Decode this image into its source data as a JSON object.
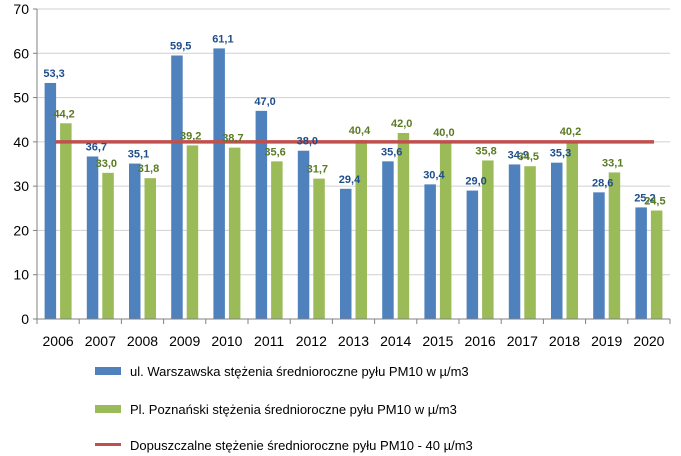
{
  "chart_data": {
    "type": "bar",
    "categories": [
      "2006",
      "2007",
      "2008",
      "2009",
      "2010",
      "2011",
      "2012",
      "2013",
      "2014",
      "2015",
      "2016",
      "2017",
      "2018",
      "2019",
      "2020"
    ],
    "series": [
      {
        "name": "ul. Warszawska stężenia średnioroczne pyłu PM10 w µ/m3",
        "values": [
          53.3,
          36.7,
          35.1,
          59.5,
          61.1,
          47.0,
          38.0,
          29.4,
          35.6,
          30.4,
          29.0,
          34.9,
          35.3,
          28.6,
          25.2
        ],
        "labels": [
          "53,3",
          "36,7",
          "35,1",
          "59,5",
          "61,1",
          "47,0",
          "38,0",
          "29,4",
          "35,6",
          "30,4",
          "29,0",
          "34,9",
          "35,3",
          "28,6",
          "25,2"
        ],
        "color": "#4F81BD",
        "label_color": "#1F4E8C"
      },
      {
        "name": "Pl. Poznański stężenia średnioroczne pyłu PM10 w µ/m3",
        "values": [
          44.2,
          33.0,
          31.8,
          39.2,
          38.7,
          35.6,
          31.7,
          40.4,
          42.0,
          40.0,
          35.8,
          34.5,
          40.2,
          33.1,
          24.5
        ],
        "labels": [
          "44,2",
          "33,0",
          "31,8",
          "39,2",
          "38,7",
          "35,6",
          "31,7",
          "40,4",
          "42,0",
          "40,0",
          "35,8",
          "34,5",
          "40,2",
          "33,1",
          "24,5"
        ],
        "color": "#9BBB59",
        "label_color": "#5A7A23"
      }
    ],
    "reference_line": {
      "name": "Dopuszczalne stężenie średnioroczne pyłu PM10 - 40 µ/m3",
      "value": 40,
      "color": "#C0504D"
    },
    "yticks": [
      "0",
      "10",
      "20",
      "30",
      "40",
      "50",
      "60",
      "70"
    ],
    "ylim": [
      0,
      70
    ],
    "grid": true,
    "legend_position": "bottom"
  }
}
